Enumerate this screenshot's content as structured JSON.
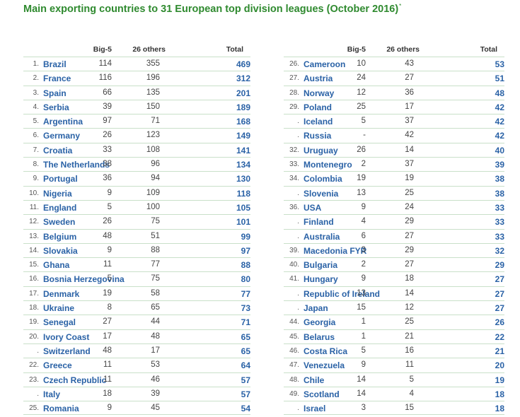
{
  "title": "Main exporting countries to 31 European top division leagues (October 2016)",
  "title_footnote_mark": "*",
  "chart_data": {
    "type": "table",
    "columns": [
      "",
      "",
      "Big-5",
      "26 others",
      "Total"
    ],
    "left": [
      [
        "1.",
        "Brazil",
        "114",
        "355",
        "469"
      ],
      [
        "2.",
        "France",
        "116",
        "196",
        "312"
      ],
      [
        "3.",
        "Spain",
        "66",
        "135",
        "201"
      ],
      [
        "4.",
        "Serbia",
        "39",
        "150",
        "189"
      ],
      [
        "5.",
        "Argentina",
        "97",
        "71",
        "168"
      ],
      [
        "6.",
        "Germany",
        "26",
        "123",
        "149"
      ],
      [
        "7.",
        "Croatia",
        "33",
        "108",
        "141"
      ],
      [
        "8.",
        "The Netherlands",
        "38",
        "96",
        "134"
      ],
      [
        "9.",
        "Portugal",
        "36",
        "94",
        "130"
      ],
      [
        "10.",
        "Nigeria",
        "9",
        "109",
        "118"
      ],
      [
        "11.",
        "England",
        "5",
        "100",
        "105"
      ],
      [
        "12.",
        "Sweden",
        "26",
        "75",
        "101"
      ],
      [
        "13.",
        "Belgium",
        "48",
        "51",
        "99"
      ],
      [
        "14.",
        "Slovakia",
        "9",
        "88",
        "97"
      ],
      [
        "15.",
        "Ghana",
        "11",
        "77",
        "88"
      ],
      [
        "16.",
        "Bosnia Herzegovina",
        "5",
        "75",
        "80"
      ],
      [
        "17.",
        "Denmark",
        "19",
        "58",
        "77"
      ],
      [
        "18.",
        "Ukraine",
        "8",
        "65",
        "73"
      ],
      [
        "19.",
        "Senegal",
        "27",
        "44",
        "71"
      ],
      [
        "20.",
        "Ivory Coast",
        "17",
        "48",
        "65"
      ],
      [
        ".",
        "Switzerland",
        "48",
        "17",
        "65"
      ],
      [
        "22.",
        "Greece",
        "11",
        "53",
        "64"
      ],
      [
        "23.",
        "Czech Republic",
        "11",
        "46",
        "57"
      ],
      [
        ".",
        "Italy",
        "18",
        "39",
        "57"
      ],
      [
        "25.",
        "Romania",
        "9",
        "45",
        "54"
      ]
    ],
    "right": [
      [
        "26.",
        "Cameroon",
        "10",
        "43",
        "53"
      ],
      [
        "27.",
        "Austria",
        "24",
        "27",
        "51"
      ],
      [
        "28.",
        "Norway",
        "12",
        "36",
        "48"
      ],
      [
        "29.",
        "Poland",
        "25",
        "17",
        "42"
      ],
      [
        ".",
        "Iceland",
        "5",
        "37",
        "42"
      ],
      [
        ".",
        "Russia",
        "-",
        "42",
        "42"
      ],
      [
        "32.",
        "Uruguay",
        "26",
        "14",
        "40"
      ],
      [
        "33.",
        "Montenegro",
        "2",
        "37",
        "39"
      ],
      [
        "34.",
        "Colombia",
        "19",
        "19",
        "38"
      ],
      [
        ".",
        "Slovenia",
        "13",
        "25",
        "38"
      ],
      [
        "36.",
        "USA",
        "9",
        "24",
        "33"
      ],
      [
        ".",
        "Finland",
        "4",
        "29",
        "33"
      ],
      [
        ".",
        "Australia",
        "6",
        "27",
        "33"
      ],
      [
        "39.",
        "Macedonia FYR",
        "3",
        "29",
        "32"
      ],
      [
        "40.",
        "Bulgaria",
        "2",
        "27",
        "29"
      ],
      [
        "41.",
        "Hungary",
        "9",
        "18",
        "27"
      ],
      [
        ".",
        "Republic of Ireland",
        "13",
        "14",
        "27"
      ],
      [
        ".",
        "Japan",
        "15",
        "12",
        "27"
      ],
      [
        "44.",
        "Georgia",
        "1",
        "25",
        "26"
      ],
      [
        "45.",
        "Belarus",
        "1",
        "21",
        "22"
      ],
      [
        "46.",
        "Costa Rica",
        "5",
        "16",
        "21"
      ],
      [
        "47.",
        "Venezuela",
        "9",
        "11",
        "20"
      ],
      [
        "48.",
        "Chile",
        "14",
        "5",
        "19"
      ],
      [
        "49.",
        "Scotland",
        "14",
        "4",
        "18"
      ],
      [
        ".",
        "Israel",
        "3",
        "15",
        "18"
      ]
    ]
  }
}
